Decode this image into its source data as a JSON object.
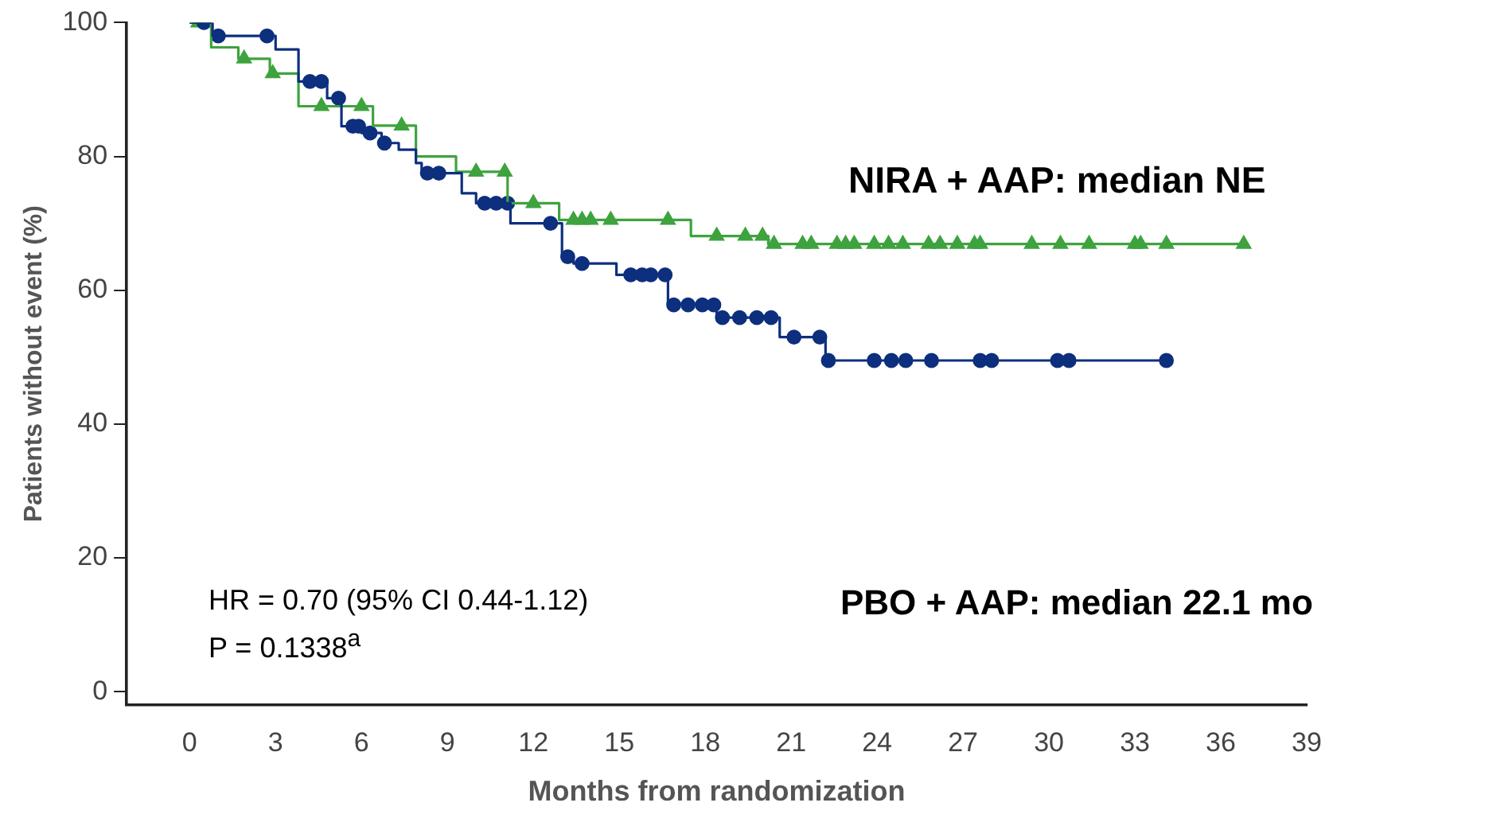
{
  "chart_data": {
    "type": "step",
    "xlabel": "Months from randomization",
    "ylabel": "Patients without event (%)",
    "xlim": [
      -2.2,
      39
    ],
    "xticks": [
      0,
      3,
      6,
      9,
      12,
      15,
      18,
      21,
      24,
      27,
      30,
      33,
      36,
      39
    ],
    "ylim": [
      -2,
      100
    ],
    "yticks": [
      0,
      20,
      40,
      60,
      80,
      100
    ],
    "annotations": [
      "NIRA + AAP: median NE",
      "PBO + AAP: median 22.1 mo",
      "HR = 0.70 (95% CI 0.44-1.12)",
      "P = 0.1338$^{a}$"
    ],
    "series": [
      {
        "color": "#0d2f7e",
        "marker": "none",
        "x": [
          0,
          0.8,
          3.0,
          3.8,
          4.8,
          5.3,
          6.0,
          6.7,
          7.3,
          7.9,
          8.1,
          9.5,
          10.0,
          11.2,
          13.0,
          13.4,
          14.9,
          16.7,
          18.4,
          20.6,
          22.2,
          34.1
        ],
        "values": [
          100,
          98,
          96,
          91.2,
          88.7,
          84.5,
          83.5,
          82,
          81,
          79,
          77.5,
          74.5,
          73,
          70,
          65,
          64,
          62.3,
          57.8,
          55.9,
          53,
          49.5,
          49.5
        ]
      },
      {
        "color": "#3ea33e",
        "marker": "none",
        "x": [
          0,
          0.75,
          1.7,
          2.8,
          3.8,
          6.4,
          7.9,
          9.3,
          11.1,
          12.9,
          17.5,
          20.2,
          36.8
        ],
        "values": [
          100,
          96.3,
          94.6,
          92.4,
          87.5,
          84.6,
          80,
          77.7,
          73,
          70.5,
          68.1,
          66.9,
          66.9
        ]
      },
      {
        "type": "scatter",
        "color": "#0d2f7e",
        "marker": "circle",
        "x": [
          0.5,
          1.0,
          2.7,
          4.2,
          4.6,
          5.2,
          5.7,
          5.9,
          6.3,
          6.8,
          8.3,
          8.7,
          10.3,
          10.7,
          11.1,
          12.6,
          13.2,
          13.7,
          15.4,
          15.8,
          16.1,
          16.6,
          16.9,
          17.4,
          17.9,
          18.3,
          18.6,
          19.2,
          19.8,
          20.3,
          21.1,
          22.0,
          22.3,
          23.9,
          24.5,
          25.0,
          25.9,
          27.6,
          28.0,
          30.3,
          30.7,
          34.1
        ],
        "values": [
          100,
          98,
          98,
          91.2,
          91.2,
          88.7,
          84.5,
          84.5,
          83.5,
          82,
          77.5,
          77.5,
          73,
          73,
          73,
          70,
          65,
          64,
          62.3,
          62.3,
          62.3,
          62.3,
          57.8,
          57.8,
          57.8,
          57.8,
          55.9,
          55.9,
          55.9,
          55.9,
          53,
          53,
          49.5,
          49.5,
          49.5,
          49.5,
          49.5,
          49.5,
          49.5,
          49.5,
          49.5,
          49.5
        ]
      },
      {
        "type": "scatter",
        "color": "#3ea33e",
        "marker": "triangle",
        "x": [
          0.3,
          1.9,
          2.9,
          4.6,
          6.0,
          7.4,
          10.0,
          11.0,
          12.0,
          13.4,
          13.7,
          14.0,
          14.7,
          16.7,
          18.4,
          19.4,
          20.0,
          20.4,
          21.4,
          21.7,
          22.6,
          22.9,
          23.2,
          23.9,
          24.4,
          24.9,
          25.8,
          26.2,
          26.8,
          27.4,
          27.6,
          29.4,
          30.4,
          31.4,
          33.0,
          33.2,
          34.1,
          36.8
        ],
        "values": [
          100,
          94.6,
          92.4,
          87.5,
          87.5,
          84.6,
          77.7,
          77.7,
          73,
          70.5,
          70.5,
          70.5,
          70.5,
          70.5,
          68.1,
          68.1,
          68.1,
          66.9,
          66.9,
          66.9,
          66.9,
          66.9,
          66.9,
          66.9,
          66.9,
          66.9,
          66.9,
          66.9,
          66.9,
          66.9,
          66.9,
          66.9,
          66.9,
          66.9,
          66.9,
          66.9,
          66.9,
          66.9
        ]
      }
    ]
  }
}
